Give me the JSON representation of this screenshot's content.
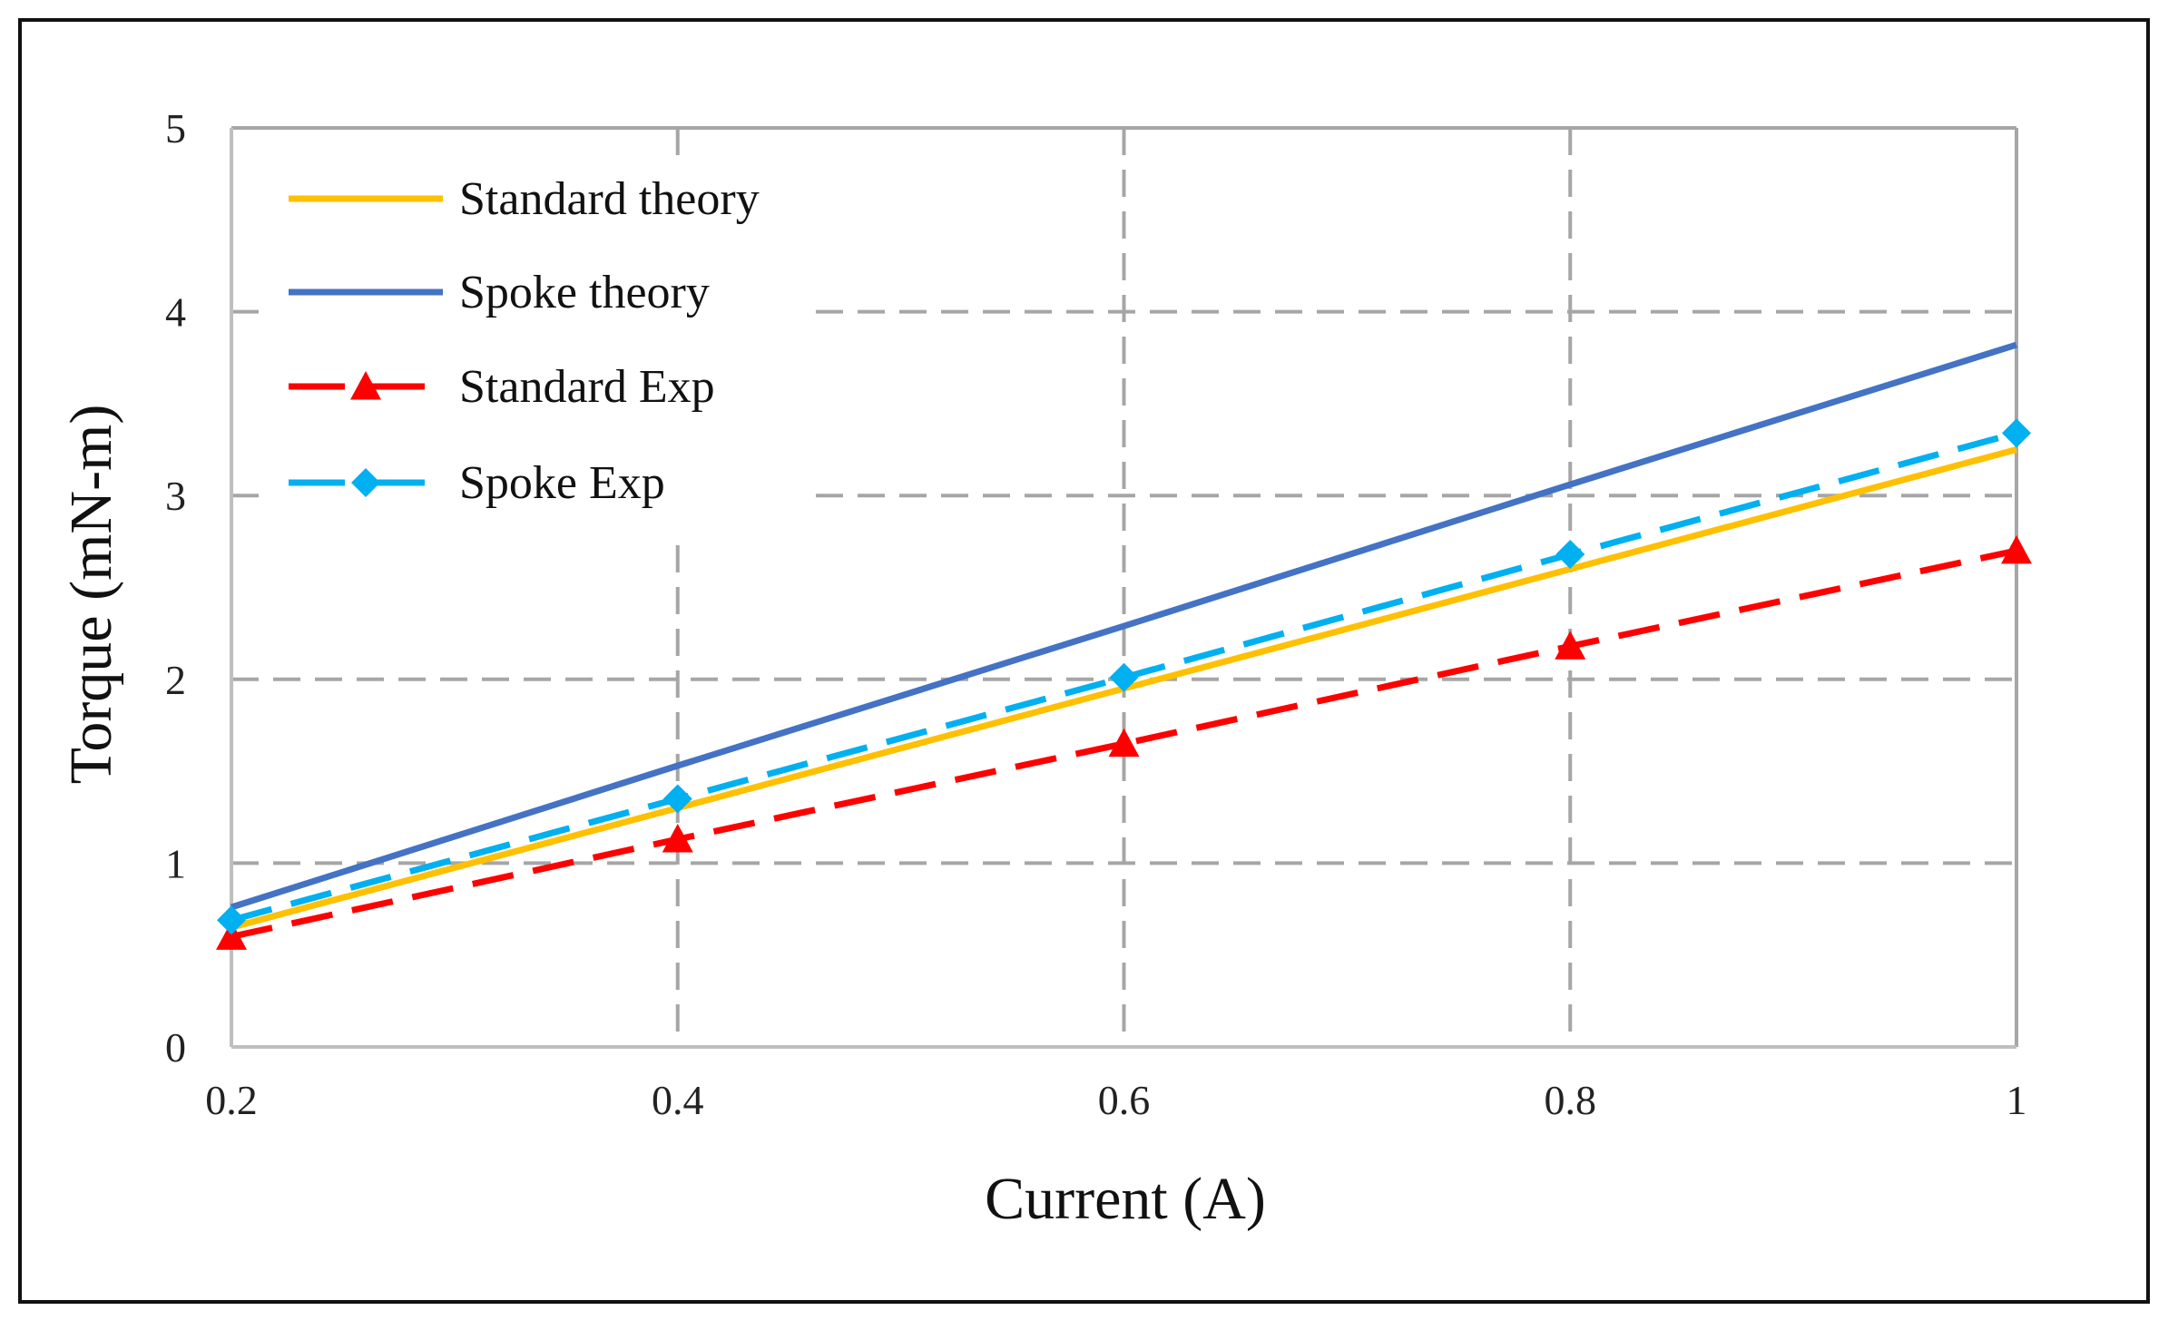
{
  "chart_data": {
    "type": "line",
    "title": "",
    "xlabel": "Current (A)",
    "ylabel": "Torque (mN-m)",
    "x": [
      0.2,
      0.4,
      0.6,
      0.8,
      1
    ],
    "x_tick_labels": [
      "0.2",
      "0.4",
      "0.6",
      "0.8",
      "1"
    ],
    "y_tick_labels": [
      "0",
      "1",
      "2",
      "3",
      "4",
      "5"
    ],
    "xlim": [
      0.2,
      1
    ],
    "ylim": [
      0,
      5
    ],
    "grid": true,
    "legend_position": "top-left",
    "series": [
      {
        "name": "Standard theory",
        "values": [
          0.65,
          1.3,
          1.95,
          2.6,
          3.25
        ],
        "color": "#FFC000",
        "style": "solid",
        "marker": "none"
      },
      {
        "name": "Spoke theory",
        "values": [
          0.76,
          1.53,
          2.29,
          3.06,
          3.82
        ],
        "color": "#4472C4",
        "style": "solid",
        "marker": "none"
      },
      {
        "name": "Standard Exp",
        "values": [
          0.6,
          1.13,
          1.65,
          2.18,
          2.7
        ],
        "color": "#FF0000",
        "style": "dashed",
        "marker": "triangle"
      },
      {
        "name": "Spoke Exp",
        "values": [
          0.69,
          1.35,
          2.01,
          2.68,
          3.34
        ],
        "color": "#00B0F0",
        "style": "dashed",
        "marker": "diamond"
      }
    ]
  }
}
